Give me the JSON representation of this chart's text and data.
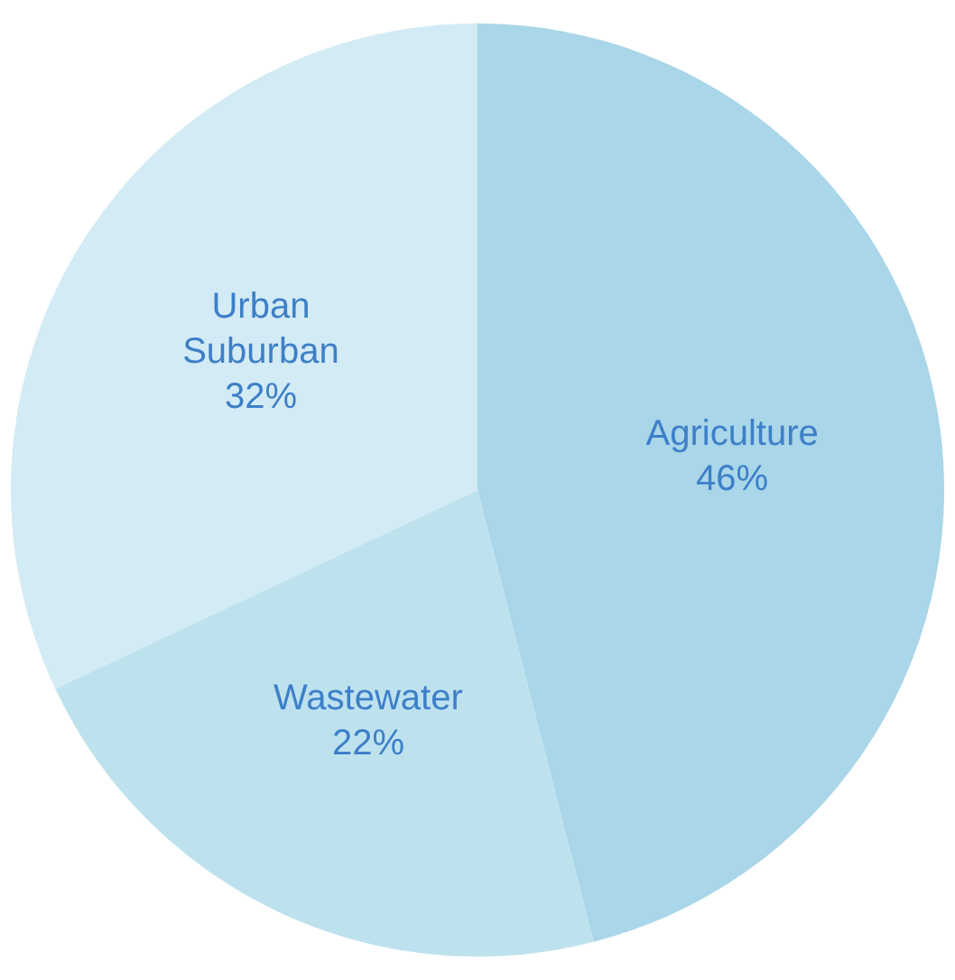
{
  "chart_data": {
    "type": "pie",
    "categories": [
      "Agriculture",
      "Wastewater",
      "Urban Suburban"
    ],
    "values": [
      46,
      22,
      32
    ],
    "colors": [
      "#a9d6e8",
      "#bde2ee",
      "#d3ebf4"
    ],
    "value_labels": [
      "46%",
      "22%",
      "32%"
    ],
    "legend": false
  }
}
